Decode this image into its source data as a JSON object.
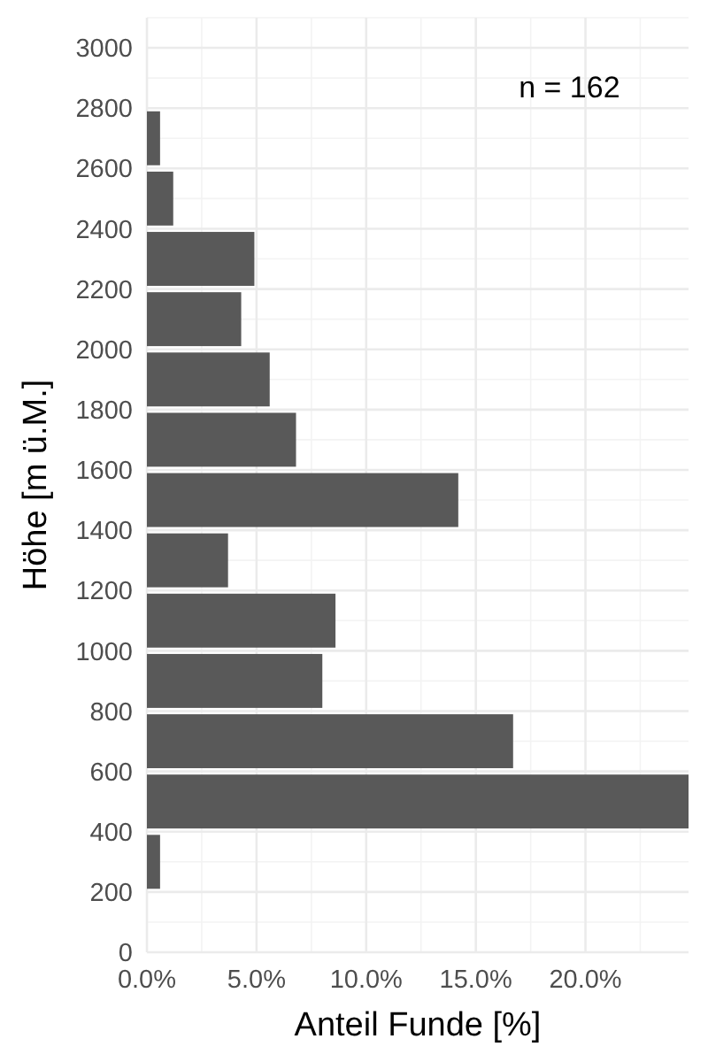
{
  "chart_data": {
    "type": "histogram",
    "orientation": "horizontal",
    "xlabel": "Anteil Funde [%]",
    "ylabel": "Höhe [m ü.M.]",
    "annotations": [
      "n = 162"
    ],
    "bins": [
      200,
      400,
      600,
      800,
      1000,
      1200,
      1400,
      1600,
      1800,
      2000,
      2200,
      2400,
      2600,
      2800
    ],
    "values": [
      0.6,
      24.7,
      16.7,
      8.0,
      8.6,
      3.7,
      14.2,
      6.8,
      5.6,
      4.3,
      4.9,
      1.2,
      0.6
    ],
    "color": "#595959",
    "xlim": [
      0,
      24.7
    ],
    "xticks": [
      {
        "value": 0,
        "label": "0.0%"
      },
      {
        "value": 5,
        "label": "5.0%"
      },
      {
        "value": 10,
        "label": "10.0%"
      },
      {
        "value": 15,
        "label": "15.0%"
      },
      {
        "value": 20,
        "label": "20.0%"
      }
    ],
    "ylim": [
      0,
      3100
    ],
    "yticks": [
      0,
      200,
      400,
      600,
      800,
      1000,
      1200,
      1400,
      1600,
      1800,
      2000,
      2200,
      2400,
      2600,
      2800,
      3000
    ],
    "grid": true
  }
}
